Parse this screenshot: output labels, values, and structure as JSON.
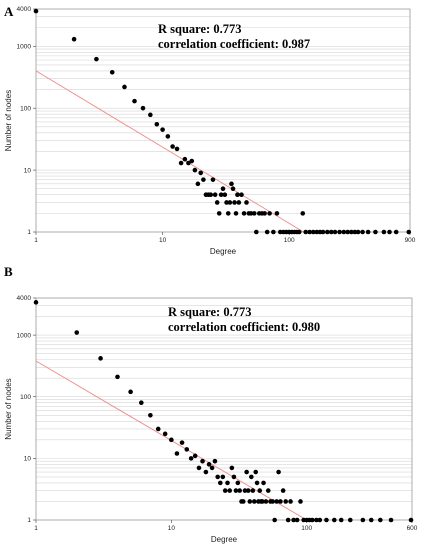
{
  "colors": {
    "points": "#000000",
    "fit_line": "#ef8a8a",
    "grid": "#d6d6d6",
    "frame": "#999999"
  },
  "chart_data": [
    {
      "panel": "A",
      "type": "scatter",
      "xlabel": "Degree",
      "ylabel": "Number of nodes",
      "x_scale": "log",
      "y_scale": "log",
      "xlim": [
        1,
        900
      ],
      "ylim": [
        1,
        4000
      ],
      "x_tick_labels": [
        "1",
        "10",
        "100",
        "900"
      ],
      "y_tick_labels": [
        "1",
        "10",
        "100",
        "1000",
        "4000"
      ],
      "annotation": [
        "R square: 0.773",
        "correlation coefficient: 0.987"
      ],
      "fit_line": [
        [
          1,
          400
        ],
        [
          130,
          1
        ]
      ],
      "points": [
        [
          1,
          3700
        ],
        [
          2,
          1300
        ],
        [
          3,
          620
        ],
        [
          4,
          380
        ],
        [
          5,
          220
        ],
        [
          6,
          130
        ],
        [
          7,
          100
        ],
        [
          8,
          78
        ],
        [
          9,
          55
        ],
        [
          10,
          45
        ],
        [
          11,
          35
        ],
        [
          12,
          24
        ],
        [
          13,
          22
        ],
        [
          14,
          13
        ],
        [
          15,
          15
        ],
        [
          16,
          13
        ],
        [
          17,
          14
        ],
        [
          18,
          10
        ],
        [
          19,
          6
        ],
        [
          20,
          9
        ],
        [
          21,
          7
        ],
        [
          22,
          4
        ],
        [
          23,
          4
        ],
        [
          24,
          4
        ],
        [
          25,
          7
        ],
        [
          26,
          4
        ],
        [
          27,
          3
        ],
        [
          28,
          2
        ],
        [
          29,
          4
        ],
        [
          30,
          5
        ],
        [
          31,
          4
        ],
        [
          32,
          3
        ],
        [
          33,
          2
        ],
        [
          34,
          3
        ],
        [
          35,
          6
        ],
        [
          36,
          5
        ],
        [
          37,
          3
        ],
        [
          38,
          2
        ],
        [
          39,
          4
        ],
        [
          40,
          3
        ],
        [
          42,
          4
        ],
        [
          44,
          2
        ],
        [
          46,
          3
        ],
        [
          48,
          2
        ],
        [
          50,
          2
        ],
        [
          53,
          2
        ],
        [
          55,
          1
        ],
        [
          58,
          2
        ],
        [
          61,
          2
        ],
        [
          64,
          2
        ],
        [
          67,
          1
        ],
        [
          70,
          2
        ],
        [
          75,
          1
        ],
        [
          80,
          2
        ],
        [
          85,
          1
        ],
        [
          90,
          1
        ],
        [
          95,
          1
        ],
        [
          100,
          1
        ],
        [
          105,
          1
        ],
        [
          110,
          1
        ],
        [
          115,
          1
        ],
        [
          120,
          1
        ],
        [
          128,
          2
        ],
        [
          135,
          1
        ],
        [
          145,
          1
        ],
        [
          155,
          1
        ],
        [
          165,
          1
        ],
        [
          175,
          1
        ],
        [
          185,
          1
        ],
        [
          200,
          1
        ],
        [
          215,
          1
        ],
        [
          230,
          1
        ],
        [
          250,
          1
        ],
        [
          270,
          1
        ],
        [
          290,
          1
        ],
        [
          310,
          1
        ],
        [
          330,
          1
        ],
        [
          350,
          1
        ],
        [
          380,
          1
        ],
        [
          420,
          1
        ],
        [
          480,
          1
        ],
        [
          560,
          1
        ],
        [
          620,
          1
        ],
        [
          700,
          1
        ],
        [
          880,
          1
        ]
      ]
    },
    {
      "panel": "B",
      "type": "scatter",
      "xlabel": "Degree",
      "ylabel": "Number of nodes",
      "x_scale": "log",
      "y_scale": "log",
      "xlim": [
        1,
        600
      ],
      "ylim": [
        1,
        4000
      ],
      "x_tick_labels": [
        "1",
        "10",
        "100",
        "600"
      ],
      "y_tick_labels": [
        "1",
        "10",
        "100",
        "1000",
        "4000"
      ],
      "annotation": [
        "R square: 0.773",
        "correlation coefficient: 0.980"
      ],
      "fit_line": [
        [
          1,
          380
        ],
        [
          100,
          1
        ]
      ],
      "points": [
        [
          1,
          3400
        ],
        [
          2,
          1100
        ],
        [
          3,
          420
        ],
        [
          4,
          210
        ],
        [
          5,
          120
        ],
        [
          6,
          80
        ],
        [
          7,
          50
        ],
        [
          8,
          30
        ],
        [
          9,
          25
        ],
        [
          10,
          20
        ],
        [
          11,
          12
        ],
        [
          12,
          18
        ],
        [
          13,
          14
        ],
        [
          14,
          10
        ],
        [
          15,
          11
        ],
        [
          16,
          7
        ],
        [
          17,
          9
        ],
        [
          18,
          6
        ],
        [
          19,
          8
        ],
        [
          20,
          7
        ],
        [
          21,
          9
        ],
        [
          22,
          5
        ],
        [
          23,
          4
        ],
        [
          24,
          5
        ],
        [
          25,
          3
        ],
        [
          26,
          4
        ],
        [
          27,
          3
        ],
        [
          28,
          7
        ],
        [
          29,
          5
        ],
        [
          30,
          3
        ],
        [
          31,
          4
        ],
        [
          32,
          3
        ],
        [
          33,
          2
        ],
        [
          34,
          2
        ],
        [
          35,
          3
        ],
        [
          36,
          6
        ],
        [
          37,
          3
        ],
        [
          38,
          2
        ],
        [
          39,
          5
        ],
        [
          40,
          3
        ],
        [
          41,
          2
        ],
        [
          42,
          6
        ],
        [
          43,
          4
        ],
        [
          44,
          2
        ],
        [
          45,
          3
        ],
        [
          46,
          2
        ],
        [
          47,
          2
        ],
        [
          48,
          4
        ],
        [
          50,
          2
        ],
        [
          52,
          3
        ],
        [
          54,
          2
        ],
        [
          56,
          2
        ],
        [
          58,
          1
        ],
        [
          60,
          2
        ],
        [
          62,
          6
        ],
        [
          64,
          2
        ],
        [
          67,
          3
        ],
        [
          70,
          2
        ],
        [
          73,
          1
        ],
        [
          76,
          2
        ],
        [
          80,
          1
        ],
        [
          85,
          1
        ],
        [
          90,
          2
        ],
        [
          95,
          1
        ],
        [
          100,
          1
        ],
        [
          105,
          1
        ],
        [
          110,
          1
        ],
        [
          118,
          1
        ],
        [
          125,
          1
        ],
        [
          140,
          1
        ],
        [
          160,
          1
        ],
        [
          180,
          1
        ],
        [
          210,
          1
        ],
        [
          260,
          1
        ],
        [
          300,
          1
        ],
        [
          350,
          1
        ],
        [
          420,
          1
        ],
        [
          590,
          1
        ]
      ]
    }
  ]
}
